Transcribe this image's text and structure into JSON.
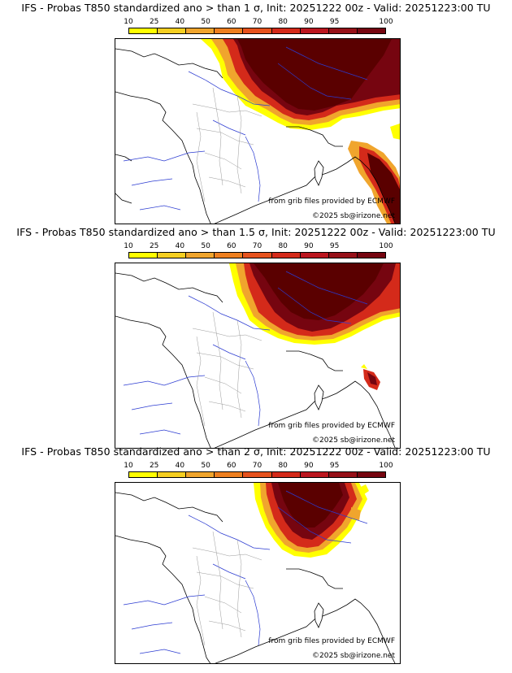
{
  "colorbar": {
    "ticks": [
      "10",
      "25",
      "40",
      "50",
      "60",
      "70",
      "80",
      "90",
      "95",
      "100"
    ],
    "colors": [
      "#ffff00",
      "#f5cf21",
      "#f0a52d",
      "#ee7f1f",
      "#e6521d",
      "#d42a1a",
      "#bb161f",
      "#961018",
      "#760510",
      "#5a0000"
    ]
  },
  "panels": [
    {
      "title": "IFS - Probas T850  standardized ano > than 1 σ, Init: 20251222 00z - Valid: 20251223:00 TU",
      "credit_source": "from grib files provided by ECMWF",
      "credit_copyright": "©2025 sb@irizone.net"
    },
    {
      "title": "IFS - Probas T850  standardized ano > than 1.5 σ, Init: 20251222 00z - Valid: 20251223:00 TU",
      "credit_source": "from grib files provided by ECMWF",
      "credit_copyright": "©2025 sb@irizone.net"
    },
    {
      "title": "IFS - Probas T850  standardized ano > than 2 σ, Init: 20251222 00z - Valid: 20251223:00 TU",
      "credit_source": "from grib files provided by ECMWF",
      "credit_copyright": "©2025 sb@irizone.net"
    }
  ]
}
